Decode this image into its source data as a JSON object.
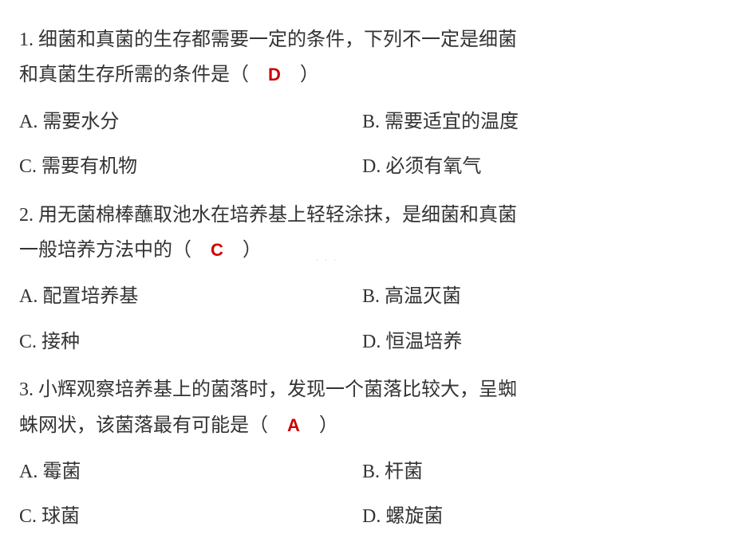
{
  "colors": {
    "text": "#333333",
    "answer": "#cc0000",
    "background": "#ffffff",
    "watermark": "#d0d0d0"
  },
  "typography": {
    "body_fontsize": 24,
    "body_lineheight": 1.85,
    "answer_fontsize": 22,
    "font_family": "SimSun"
  },
  "watermark": "· · ·",
  "questions": [
    {
      "number": "1.",
      "stem_line1": "1. 细菌和真菌的生存都需要一定的条件，下列不一定是细菌",
      "stem_line2_before": "和真菌生存所需的条件是（　",
      "answer": "D",
      "stem_line2_after": "　）",
      "options": {
        "A": "A. 需要水分",
        "B": "B. 需要适宜的温度",
        "C": "C. 需要有机物",
        "D": "D. 必须有氧气"
      }
    },
    {
      "number": "2.",
      "stem_line1": "2. 用无菌棉棒蘸取池水在培养基上轻轻涂抹，是细菌和真菌",
      "stem_line2_before": "一般培养方法中的（　",
      "answer": "C",
      "stem_line2_after": "　）",
      "options": {
        "A": "A. 配置培养基",
        "B": "B. 高温灭菌",
        "C": "C. 接种",
        "D": "D. 恒温培养"
      }
    },
    {
      "number": "3.",
      "stem_line1": "3. 小辉观察培养基上的菌落时，发现一个菌落比较大，呈蜘",
      "stem_line2_before": "蛛网状，该菌落最有可能是（　",
      "answer": "A",
      "stem_line2_after": "　）",
      "options": {
        "A": "A. 霉菌",
        "B": "B. 杆菌",
        "C": "C. 球菌",
        "D": "D. 螺旋菌"
      }
    }
  ]
}
